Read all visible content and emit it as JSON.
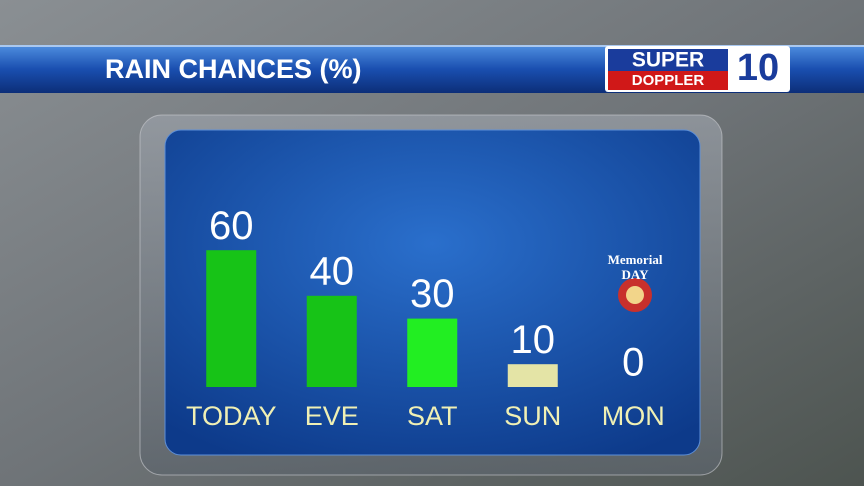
{
  "chart_data": {
    "type": "bar",
    "title": "RAIN CHANCES (%)",
    "logo": {
      "line1": "SUPER",
      "line2": "DOPPLER",
      "number": "10"
    },
    "annotation": {
      "line1": "Memorial",
      "line2": "DAY"
    },
    "categories": [
      "TODAY",
      "EVE",
      "SAT",
      "SUN",
      "MON"
    ],
    "values": [
      60,
      40,
      30,
      10,
      0
    ],
    "colors": [
      "#17c317",
      "#17c317",
      "#22ee22",
      "#e4e4a6",
      "#e4e4a6"
    ]
  }
}
